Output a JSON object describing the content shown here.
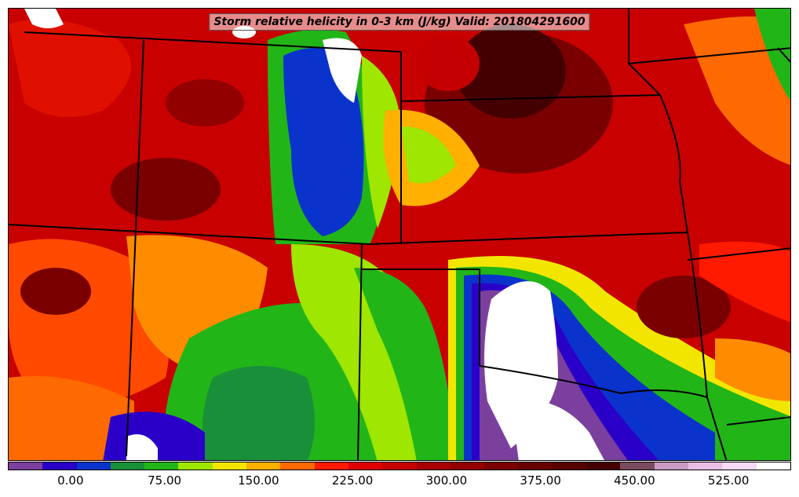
{
  "title": "Storm relative helicity in 0-3 km (J/kg) Valid: 201804291600",
  "colorbar": {
    "colors": [
      "#7b3f9e",
      "#2a00c8",
      "#0a33cc",
      "#1a8f3a",
      "#22b518",
      "#9fe600",
      "#f2e600",
      "#ffb000",
      "#ff6a00",
      "#ff1a00",
      "#e00000",
      "#c40000",
      "#a80000",
      "#920000",
      "#7a0000",
      "#680000",
      "#560000",
      "#440000",
      "#7a4a5e",
      "#c89ac4",
      "#e8bde6",
      "#f6d9f4",
      "#ffffff"
    ],
    "tick_labels": [
      "0.00",
      "75.00",
      "150.00",
      "225.00",
      "300.00",
      "375.00",
      "450.00",
      "525.00"
    ],
    "tick_values": [
      0,
      75,
      150,
      225,
      300,
      375,
      450,
      525
    ],
    "range": [
      -50,
      575
    ]
  },
  "regions": [
    {
      "name": "blue-band-front-range",
      "color": "#2a00c8"
    },
    {
      "name": "green-high-plains",
      "color": "#22b518"
    },
    {
      "name": "white-texas-panhandle",
      "color": "#ffffff"
    },
    {
      "name": "purple-west-texas",
      "color": "#7b3f9e"
    },
    {
      "name": "dark-red-northeast",
      "color": "#560000"
    }
  ]
}
